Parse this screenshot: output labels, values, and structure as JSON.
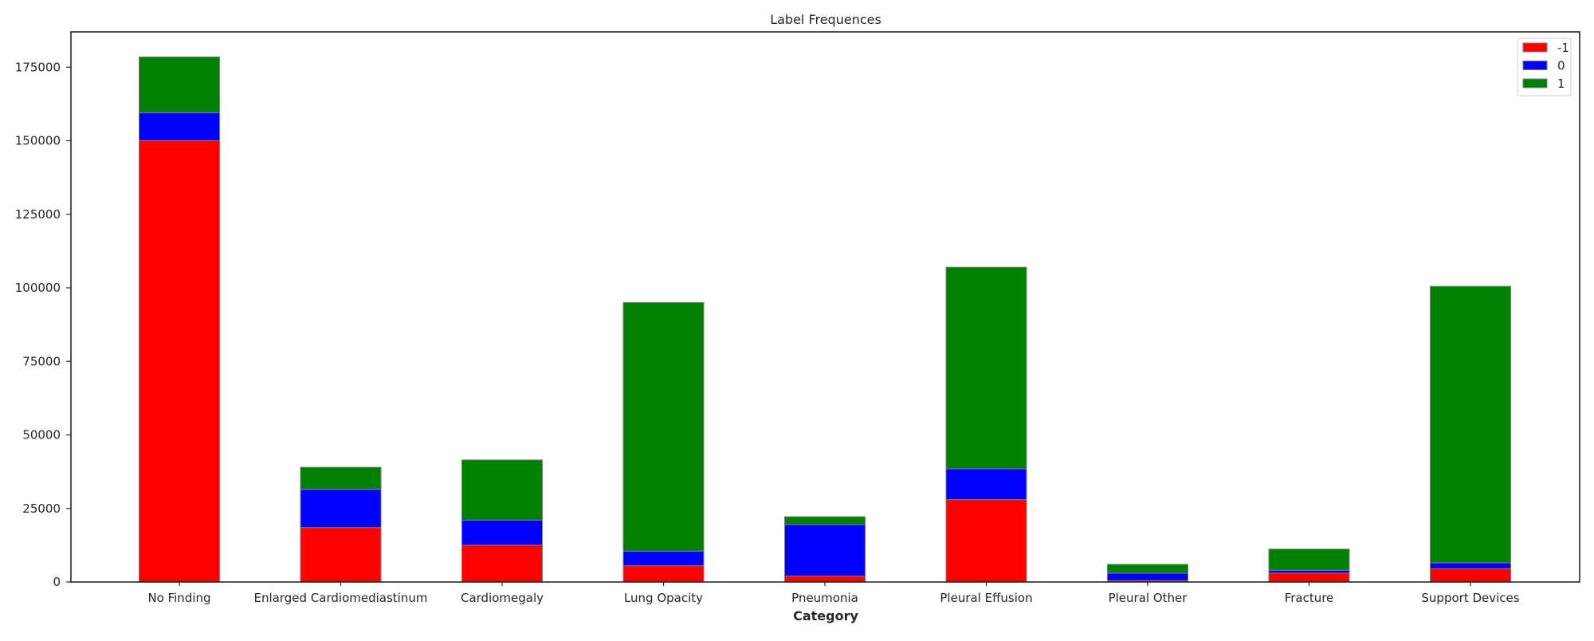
{
  "chart_data": {
    "type": "bar",
    "stacked": true,
    "title": "Label Frequences",
    "xlabel": "Category",
    "ylabel": "",
    "ylim": [
      0,
      187000
    ],
    "yticks": [
      0,
      25000,
      50000,
      75000,
      100000,
      125000,
      150000,
      175000
    ],
    "grid": false,
    "legend_position": "top-right",
    "categories": [
      "No Finding",
      "Enlarged Cardiomediastinum",
      "Cardiomegaly",
      "Lung Opacity",
      "Pneumonia",
      "Pleural Effusion",
      "Pleural Other",
      "Fracture",
      "Support Devices"
    ],
    "series": [
      {
        "name": "-1",
        "color": "#ff0000",
        "values": [
          150000,
          18500,
          12500,
          5500,
          2000,
          28000,
          500,
          3000,
          4500
        ]
      },
      {
        "name": "0",
        "color": "#0000ff",
        "values": [
          9500,
          13000,
          8500,
          5000,
          17500,
          10500,
          2500,
          1000,
          2000
        ]
      },
      {
        "name": "1",
        "color": "#008000",
        "values": [
          19000,
          7500,
          20500,
          84500,
          2700,
          68500,
          3000,
          7200,
          94000
        ]
      }
    ]
  }
}
